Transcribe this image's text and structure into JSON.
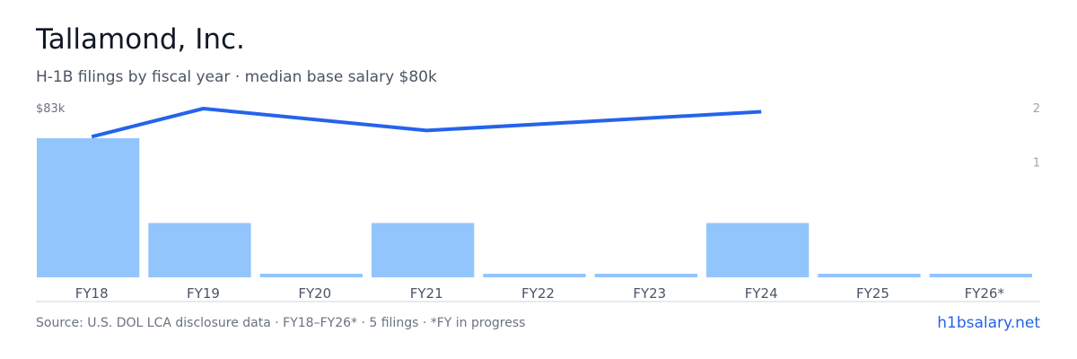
{
  "header": {
    "title": "Tallamond, Inc.",
    "subtitle": "H-1B filings by fiscal year · median base salary $80k"
  },
  "footer": {
    "source": "Source: U.S. DOL LCA disclosure data · FY18–FY26* · 5 filings · *FY in progress",
    "brand": "h1bsalary.net"
  },
  "chart_data": {
    "type": "bar",
    "categories": [
      "FY18",
      "FY19",
      "FY20",
      "FY21",
      "FY22",
      "FY23",
      "FY24",
      "FY25",
      "FY26*"
    ],
    "series": [
      {
        "type": "bar",
        "axis": "right",
        "values": [
          2,
          1,
          0,
          1,
          0,
          0,
          1,
          0,
          0
        ],
        "color": "#93c5fd"
      },
      {
        "type": "line",
        "axis": "left",
        "values": [
          78500,
          83000,
          null,
          79500,
          null,
          null,
          82500,
          null,
          null
        ],
        "color": "#2563eb"
      }
    ],
    "y_left": {
      "top_label": "$83k",
      "max": 83000,
      "min": 56000
    },
    "y_right": {
      "ticks": [
        "1",
        "2"
      ],
      "ylim": [
        0,
        2.44
      ]
    },
    "grid": false,
    "legend": "none"
  }
}
